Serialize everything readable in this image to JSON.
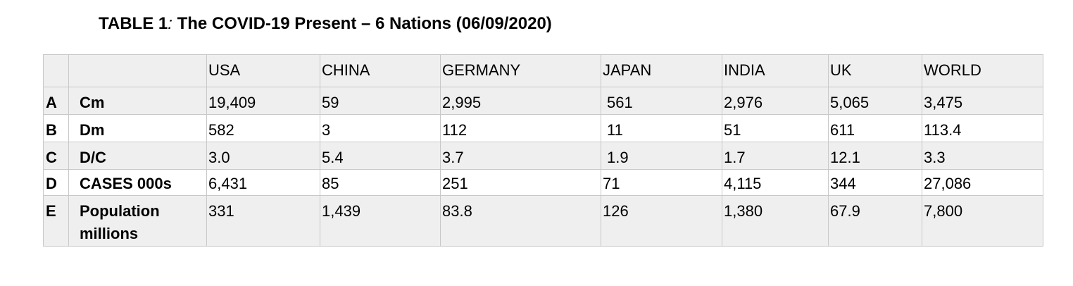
{
  "title": {
    "prefix": "TABLE 1",
    "colon": ":",
    "text": "The COVID-19 Present – 6 Nations (06/09/2020)"
  },
  "table": {
    "columns": [
      "",
      "",
      "USA",
      "CHINA",
      "GERMANY",
      "JAPAN",
      "INDIA",
      "UK",
      "WORLD"
    ],
    "rows": [
      {
        "letter": "A",
        "label": "Cm",
        "values": [
          "19,409",
          "59",
          "2,995",
          "561",
          "2,976",
          "5,065",
          "3,475"
        ]
      },
      {
        "letter": "B",
        "label": "Dm",
        "values": [
          "582",
          "3",
          "112",
          "11",
          "51",
          "611",
          "113.4"
        ]
      },
      {
        "letter": "C",
        "label": "D/C",
        "values": [
          "3.0",
          "5.4",
          "3.7",
          "1.9",
          "1.7",
          "12.1",
          "3.3"
        ]
      },
      {
        "letter": "D",
        "label": "CASES 000s",
        "values": [
          "6,431",
          "85",
          "251",
          "71",
          "4,115",
          "344",
          "27,086"
        ]
      },
      {
        "letter": "E",
        "label": "Population millions",
        "values": [
          "331",
          "1,439",
          "83.8",
          "126",
          "1,380",
          "67.9",
          "7,800"
        ]
      }
    ]
  }
}
